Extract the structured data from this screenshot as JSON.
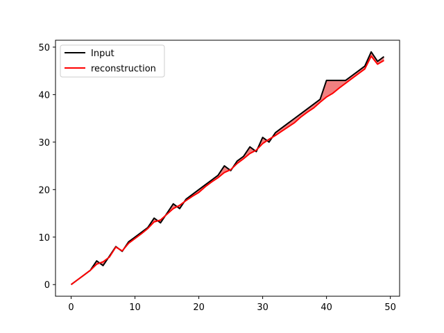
{
  "chart_data": {
    "type": "line",
    "x": [
      0,
      1,
      2,
      3,
      4,
      5,
      6,
      7,
      8,
      9,
      10,
      11,
      12,
      13,
      14,
      15,
      16,
      17,
      18,
      19,
      20,
      21,
      22,
      23,
      24,
      25,
      26,
      27,
      28,
      29,
      30,
      31,
      32,
      33,
      34,
      35,
      36,
      37,
      38,
      39,
      40,
      41,
      42,
      43,
      44,
      45,
      46,
      47,
      48,
      49
    ],
    "series": [
      {
        "name": "Input",
        "color": "#000000",
        "values": [
          0,
          1,
          2,
          3,
          5,
          4,
          6,
          8,
          7,
          9,
          10,
          11,
          12,
          14,
          13,
          15,
          17,
          16,
          18,
          19,
          20,
          21,
          22,
          23,
          25,
          24,
          26,
          27,
          29,
          28,
          31,
          30,
          32,
          33,
          34,
          35,
          36,
          37,
          38,
          39,
          43,
          43,
          43,
          43,
          44,
          45,
          46,
          49,
          47,
          48
        ]
      },
      {
        "name": "reconstruction",
        "color": "#ff0000",
        "values": [
          0,
          1,
          2,
          3,
          4.3,
          4.8,
          5.8,
          7.9,
          7.1,
          8.7,
          9.7,
          10.7,
          11.8,
          13.2,
          13.6,
          14.8,
          16.0,
          16.7,
          17.7,
          18.6,
          19.4,
          20.6,
          21.6,
          22.5,
          23.6,
          24.2,
          25.5,
          26.5,
          27.6,
          28.3,
          29.7,
          30.6,
          31.4,
          32.3,
          33.2,
          34.1,
          35.3,
          36.3,
          37.2,
          38.4,
          39.5,
          40.3,
          41.4,
          42.4,
          43.4,
          44.4,
          45.4,
          48.1,
          46.4,
          47.2
        ]
      }
    ],
    "fill_between": {
      "color": "#f08080",
      "between": [
        "Input",
        "reconstruction"
      ]
    },
    "xlim": [
      -2.45,
      51.45
    ],
    "ylim": [
      -2.45,
      51.45
    ],
    "xticks": [
      0,
      10,
      20,
      30,
      40,
      50
    ],
    "yticks": [
      0,
      10,
      20,
      30,
      40,
      50
    ],
    "title": "",
    "xlabel": "",
    "ylabel": "",
    "legend": {
      "loc": "upper-left",
      "entries": [
        "Input",
        "reconstruction"
      ]
    },
    "grid": false
  }
}
